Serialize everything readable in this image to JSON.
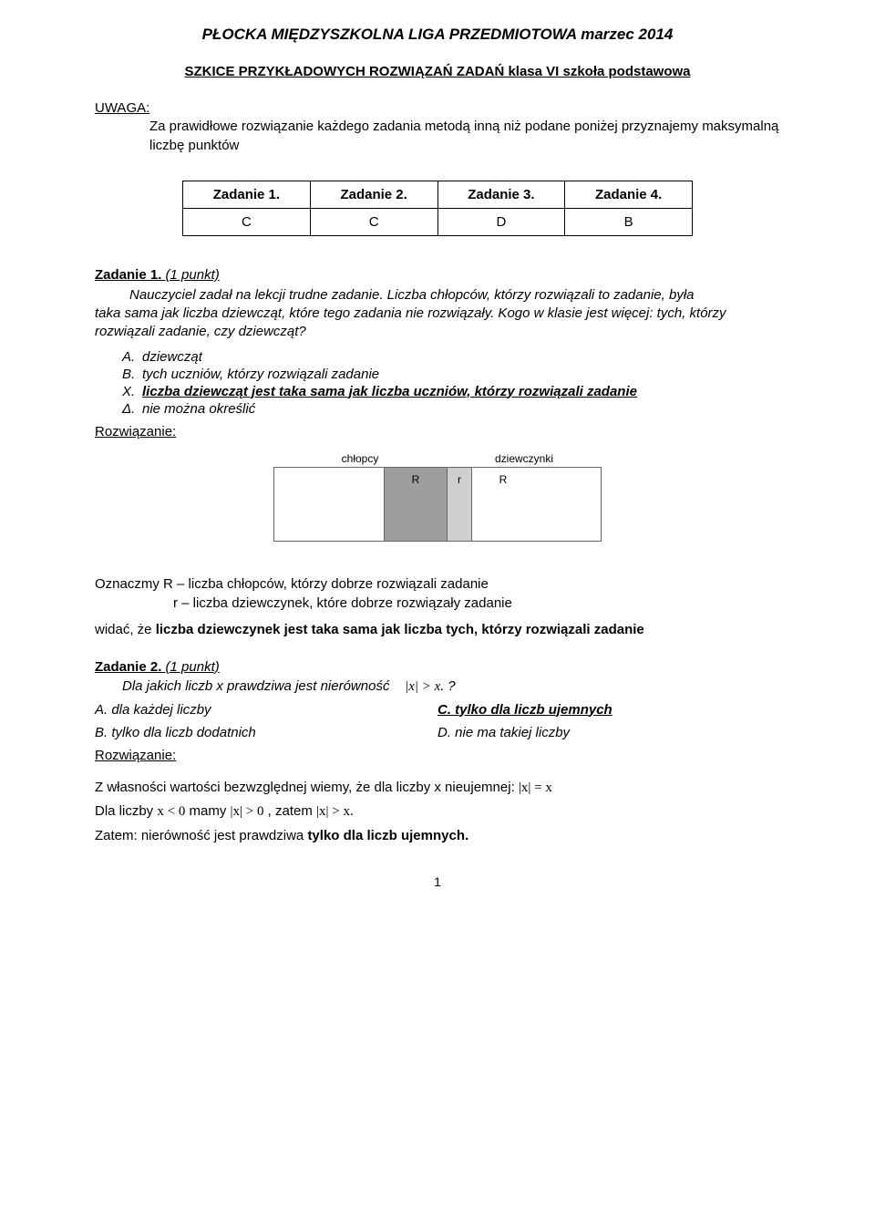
{
  "title": "PŁOCKA MIĘDZYSZKOLNA LIGA PRZEDMIOTOWA marzec 2014",
  "subtitle": "SZKICE PRZYKŁADOWYCH ROZWIĄZAŃ ZADAŃ klasa VI szkoła podstawowa",
  "uwaga_label": "UWAGA:",
  "uwaga_text": "Za prawidłowe rozwiązanie każdego zadania metodą inną niż podane poniżej przyznajemy maksymalną liczbę punktów",
  "ans_table": {
    "headers": [
      "Zadanie 1.",
      "Zadanie 2.",
      "Zadanie 3.",
      "Zadanie 4."
    ],
    "values": [
      "C",
      "C",
      "D",
      "B"
    ]
  },
  "z1": {
    "heading": "Zadanie 1.",
    "pts": "(1 punkt)",
    "q_first": "Nauczyciel zadał na lekcji trudne zadanie. Liczba chłopców, którzy rozwiązali to zadanie, była",
    "q_rest": "taka sama jak liczba dziewcząt, które tego zadania nie rozwiązały. Kogo w klasie jest więcej: tych, którzy rozwiązali zadanie, czy dziewcząt?",
    "optA": "dziewcząt",
    "optB": "tych uczniów, którzy rozwiązali zadanie",
    "optC": "liczba dziewcząt jest taka sama jak liczba uczniów, którzy rozwiązali zadanie",
    "optD": "nie można określić"
  },
  "rozw_label": "Rozwiązanie:",
  "diagram": {
    "boys_label": "chłopcy",
    "girls_label": "dziewczynki",
    "R1": "R",
    "r": "r",
    "R2": "R",
    "colors": {
      "border": "#666666",
      "white": "#ffffff",
      "gray": "#9e9e9e",
      "lgray": "#cfcfcf"
    }
  },
  "sol1_l1": "Oznaczmy R – liczba chłopców, którzy dobrze rozwiązali zadanie",
  "sol1_l2": "r – liczba dziewczynek, które dobrze rozwiązały zadanie",
  "sol1_conc_a": "widać, że ",
  "sol1_conc_b": "liczba dziewczynek jest taka sama jak liczba tych, którzy rozwiązali zadanie",
  "z2": {
    "heading": "Zadanie 2.",
    "pts": "(1 punkt)",
    "q": "Dla jakich liczb x prawdziwa jest nierówność",
    "ineq": "|x| > x.",
    "qmark": "?",
    "A": "A. dla każdej liczby",
    "B": "B. tylko dla liczb dodatnich",
    "C": "C. tylko dla liczb ujemnych",
    "D": "D. nie ma takiej liczby"
  },
  "sol2_l1a": "Z własności wartości bezwzględnej wiemy, że dla liczby x nieujemnej: ",
  "sol2_l1b": "|x| = x",
  "sol2_l2a": "Dla liczby ",
  "sol2_l2b": "x < 0",
  "sol2_l2c": " mamy ",
  "sol2_l2d": "|x| > 0",
  "sol2_l2e": ", zatem ",
  "sol2_l2f": "|x| > x.",
  "sol2_l3a": "Zatem: nierówność jest prawdziwa ",
  "sol2_l3b": "tylko dla liczb ujemnych.",
  "pagenum": "1"
}
